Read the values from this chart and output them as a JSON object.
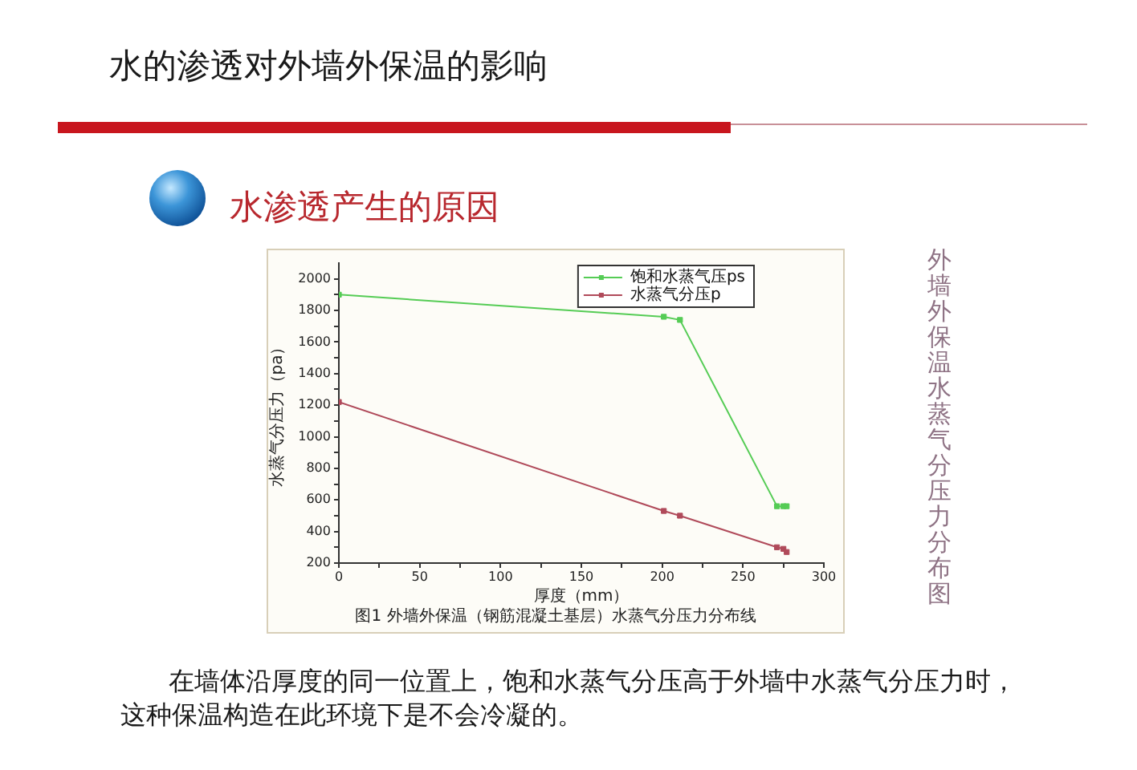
{
  "chart_data": {
    "type": "line",
    "title": "水的渗透对外墙外保温的影响",
    "subtitle": "水渗透产生的原因",
    "xlabel": "厚度（mm）",
    "ylabel": "水蒸气分压力（pa）",
    "annotations": [
      "图1 外墙外保温（钢筋混凝土基层）水蒸气分压力分布线",
      "外墙外保温水蒸气分压力分布图",
      "在墙体沿厚度的同一位置上，饱和水蒸气分压高于外墙中水蒸气分压力时，这种保温构造在此环境下是不会冷凝的。"
    ],
    "x": [
      0,
      201,
      211,
      271,
      275,
      277
    ],
    "series": [
      {
        "name": "饱和水蒸气压ps",
        "color": "#55cc55",
        "values": [
          1900,
          1760,
          1740,
          560,
          560,
          560
        ]
      },
      {
        "name": "水蒸气分压p",
        "color": "#b04a5a",
        "values": [
          1220,
          530,
          500,
          300,
          290,
          270
        ]
      }
    ],
    "xlim": [
      0,
      300
    ],
    "xticks": [
      0,
      {
        "value": 25,
        "label": null
      },
      50,
      {
        "value": 75,
        "label": null
      },
      100,
      {
        "value": 125,
        "label": null
      },
      150,
      {
        "value": 175,
        "label": null
      },
      200,
      {
        "value": 225,
        "label": null
      },
      250,
      {
        "value": 275,
        "label": null
      },
      300
    ],
    "ylim": [
      200,
      2100
    ],
    "yticks": [
      200,
      {
        "value": 300,
        "label": null
      },
      400,
      {
        "value": 500,
        "label": null
      },
      600,
      {
        "value": 700,
        "label": null
      },
      800,
      {
        "value": 900,
        "label": null
      },
      1000,
      {
        "value": 1100,
        "label": null
      },
      1200,
      {
        "value": 1300,
        "label": null
      },
      1400,
      {
        "value": 1500,
        "label": null
      },
      1600,
      {
        "value": 1700,
        "label": null
      },
      1800,
      {
        "value": 1900,
        "label": null
      },
      2000
    ],
    "grid": false,
    "legend": "top right",
    "marker": "square",
    "line_style": "solid"
  }
}
